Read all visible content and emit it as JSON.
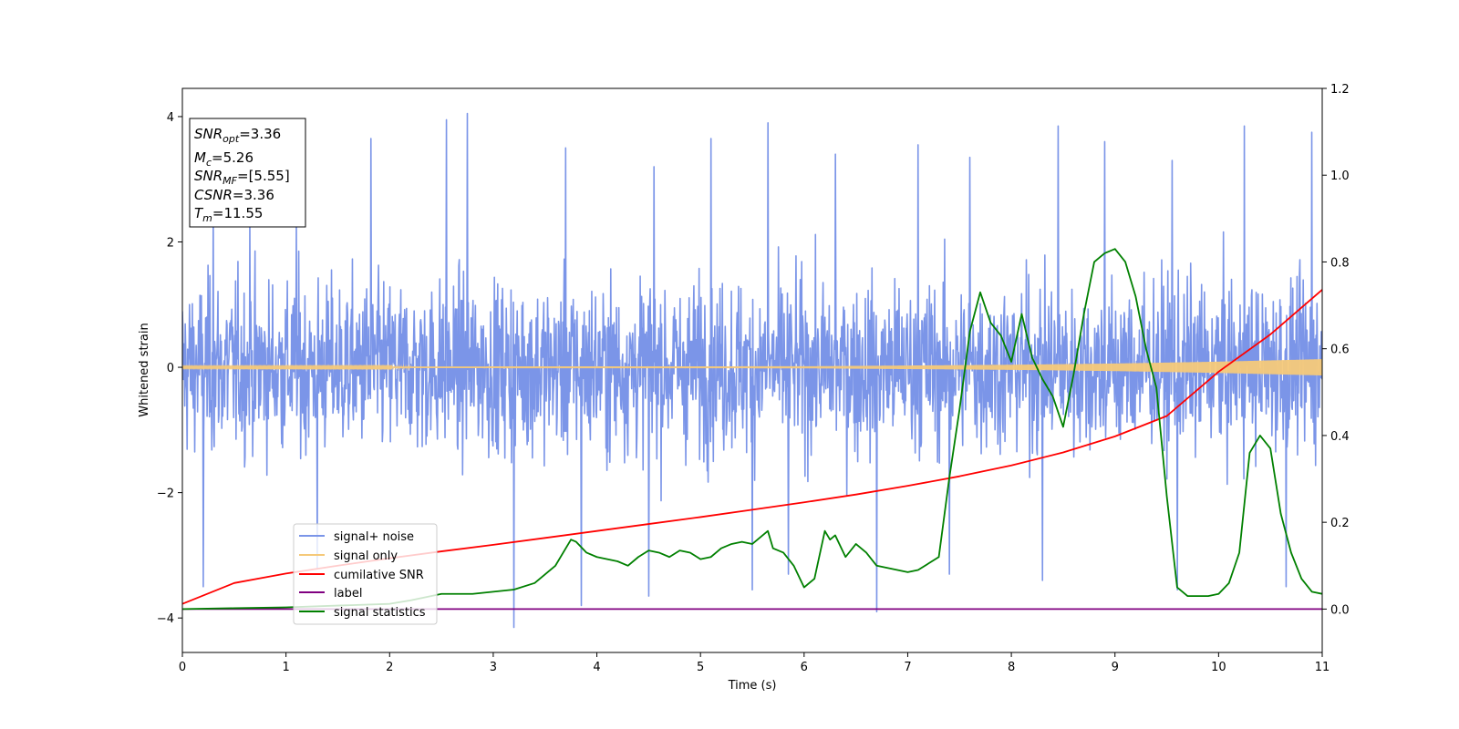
{
  "chart_data": {
    "type": "line",
    "xlabel": "Time (s)",
    "ylabel_left": "Whitened strain",
    "ylabel_right": "",
    "xlim": [
      0,
      11
    ],
    "ylim_left": [
      -4.55,
      4.45
    ],
    "ylim_right": [
      -0.1,
      1.2
    ],
    "xticks": [
      0,
      1,
      2,
      3,
      4,
      5,
      6,
      7,
      8,
      9,
      10,
      11
    ],
    "yticks_left": [
      -4,
      -2,
      0,
      2,
      4
    ],
    "yticks_left_labels": [
      "−4",
      "−2",
      "0",
      "2",
      "4"
    ],
    "yticks_right": [
      0.0,
      0.2,
      0.4,
      0.6,
      0.8,
      1.0,
      1.2
    ],
    "yticks_right_labels": [
      "0.0",
      "0.2",
      "0.4",
      "0.6",
      "0.8",
      "1.0",
      "1.2"
    ],
    "grid": false,
    "legend_position": "lower-left",
    "stats_box": {
      "snr_opt": {
        "base": "SNR",
        "sub": "opt",
        "value": "=3.36"
      },
      "mc": {
        "base": "M",
        "sub": "c",
        "value": "=5.26"
      },
      "snr_mf": {
        "base": "SNR",
        "sub": "MF",
        "value": "=[5.55]"
      },
      "csnr": {
        "base": "CSNR",
        "sub": "",
        "value": "=3.36"
      },
      "tm": {
        "base": "T",
        "sub": "m",
        "value": "=11.55"
      }
    },
    "series": [
      {
        "name": "signal+ noise",
        "color": "#7b95e8",
        "axis": "left",
        "description_kind": "noise band",
        "envelope_typical": [
          -1.9,
          2.0
        ],
        "spike_max": [
          [
            0.3,
            2.6
          ],
          [
            0.65,
            2.35
          ],
          [
            1.1,
            2.35
          ],
          [
            1.82,
            3.65
          ],
          [
            2.55,
            3.95
          ],
          [
            2.75,
            4.05
          ],
          [
            3.7,
            3.5
          ],
          [
            4.55,
            3.2
          ],
          [
            5.1,
            3.65
          ],
          [
            5.65,
            3.9
          ],
          [
            6.3,
            3.4
          ],
          [
            7.1,
            3.55
          ],
          [
            7.6,
            3.35
          ],
          [
            8.45,
            3.85
          ],
          [
            8.9,
            3.6
          ],
          [
            9.55,
            3.3
          ],
          [
            10.25,
            3.85
          ],
          [
            10.9,
            3.75
          ]
        ],
        "spike_min": [
          [
            0.2,
            -3.5
          ],
          [
            1.3,
            -3.2
          ],
          [
            3.2,
            -4.15
          ],
          [
            3.85,
            -3.8
          ],
          [
            4.5,
            -3.65
          ],
          [
            5.5,
            -3.55
          ],
          [
            5.85,
            -3.3
          ],
          [
            6.7,
            -3.9
          ],
          [
            7.4,
            -3.3
          ],
          [
            8.3,
            -3.4
          ],
          [
            9.6,
            -3.55
          ],
          [
            10.65,
            -3.5
          ]
        ]
      },
      {
        "name": "signal only",
        "color": "#f5c97a",
        "axis": "left",
        "amplitude_envelope": {
          "x": [
            0,
            6.0,
            8.0,
            9.0,
            10.0,
            11.0
          ],
          "y": [
            0.01,
            0.015,
            0.04,
            0.06,
            0.09,
            0.13
          ]
        }
      },
      {
        "name": "cumilative SNR",
        "color": "#ff0000",
        "axis": "right",
        "x": [
          0,
          0.5,
          1,
          1.5,
          2,
          2.5,
          3,
          3.5,
          4,
          4.5,
          5,
          5.5,
          6,
          6.5,
          7,
          7.5,
          8,
          8.5,
          9,
          9.5,
          10,
          10.5,
          11
        ],
        "y": [
          0.012,
          0.06,
          0.082,
          0.1,
          0.117,
          0.133,
          0.148,
          0.164,
          0.18,
          0.196,
          0.212,
          0.229,
          0.246,
          0.264,
          0.284,
          0.306,
          0.331,
          0.361,
          0.398,
          0.445,
          0.547,
          0.633,
          0.736
        ]
      },
      {
        "name": "label",
        "color": "#800080",
        "axis": "right",
        "x": [
          0,
          11
        ],
        "y": [
          0.0,
          0.0
        ]
      },
      {
        "name": "signal statistics",
        "color": "#008000",
        "axis": "right",
        "x": [
          0,
          0.5,
          1,
          1.5,
          2,
          2.2,
          2.5,
          2.8,
          3.0,
          3.2,
          3.4,
          3.5,
          3.6,
          3.7,
          3.75,
          3.8,
          3.9,
          4.0,
          4.1,
          4.2,
          4.3,
          4.4,
          4.5,
          4.6,
          4.7,
          4.8,
          4.9,
          5.0,
          5.1,
          5.2,
          5.3,
          5.4,
          5.5,
          5.6,
          5.65,
          5.7,
          5.8,
          5.9,
          6.0,
          6.1,
          6.2,
          6.25,
          6.3,
          6.4,
          6.5,
          6.6,
          6.7,
          6.8,
          6.9,
          7.0,
          7.1,
          7.2,
          7.3,
          7.4,
          7.5,
          7.6,
          7.7,
          7.8,
          7.9,
          8.0,
          8.1,
          8.2,
          8.3,
          8.4,
          8.5,
          8.6,
          8.7,
          8.8,
          8.9,
          9.0,
          9.1,
          9.2,
          9.3,
          9.4,
          9.5,
          9.6,
          9.7,
          9.8,
          9.9,
          10.0,
          10.1,
          10.2,
          10.3,
          10.4,
          10.5,
          10.6,
          10.7,
          10.8,
          10.9,
          11.0
        ],
        "y": [
          0.0,
          0.002,
          0.004,
          0.008,
          0.012,
          0.02,
          0.035,
          0.035,
          0.04,
          0.045,
          0.06,
          0.08,
          0.1,
          0.14,
          0.16,
          0.155,
          0.13,
          0.12,
          0.115,
          0.11,
          0.1,
          0.12,
          0.135,
          0.13,
          0.12,
          0.135,
          0.13,
          0.115,
          0.12,
          0.14,
          0.15,
          0.155,
          0.15,
          0.17,
          0.18,
          0.14,
          0.13,
          0.1,
          0.05,
          0.07,
          0.18,
          0.16,
          0.17,
          0.12,
          0.15,
          0.13,
          0.1,
          0.095,
          0.09,
          0.085,
          0.09,
          0.105,
          0.12,
          0.3,
          0.46,
          0.64,
          0.73,
          0.66,
          0.63,
          0.57,
          0.68,
          0.58,
          0.53,
          0.49,
          0.42,
          0.54,
          0.68,
          0.8,
          0.82,
          0.83,
          0.8,
          0.72,
          0.6,
          0.51,
          0.26,
          0.05,
          0.03,
          0.03,
          0.03,
          0.035,
          0.06,
          0.13,
          0.36,
          0.4,
          0.37,
          0.22,
          0.13,
          0.07,
          0.04,
          0.035
        ]
      }
    ]
  }
}
